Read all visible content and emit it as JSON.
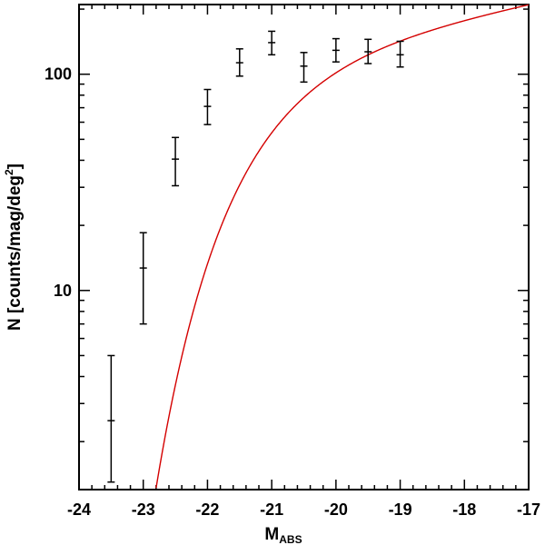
{
  "chart_data": {
    "type": "scatter",
    "title": "",
    "x_axis": {
      "label_main": "M",
      "label_sub": "ABS",
      "range": [
        -24,
        -17
      ],
      "scale": "linear",
      "major_ticks": [
        -24,
        -23,
        -22,
        -21,
        -20,
        -19,
        -18,
        -17
      ],
      "tick_labels": [
        "-24",
        "-23",
        "-22",
        "-21",
        "-20",
        "-19",
        "-18",
        "-17"
      ]
    },
    "y_axis": {
      "label_main": "N [counts/mag/deg",
      "label_sup": "2",
      "label_end": "]",
      "range": [
        1.2,
        210
      ],
      "scale": "log",
      "major_ticks": [
        10,
        100
      ],
      "tick_labels": [
        "10",
        "100"
      ]
    },
    "series": [
      {
        "kind": "points-with-errorbars",
        "color": "#000000",
        "points": [
          {
            "x": -23.5,
            "y": 2.5,
            "err_low": 1.3,
            "err_high": 5.0
          },
          {
            "x": -23.0,
            "y": 12.7,
            "err_low": 7.0,
            "err_high": 18.5
          },
          {
            "x": -22.5,
            "y": 40.5,
            "err_low": 30.5,
            "err_high": 51.0
          },
          {
            "x": -22.0,
            "y": 71.0,
            "err_low": 58.5,
            "err_high": 85.0
          },
          {
            "x": -21.5,
            "y": 113.0,
            "err_low": 98.0,
            "err_high": 131.0
          },
          {
            "x": -21.0,
            "y": 140.0,
            "err_low": 123.0,
            "err_high": 158.0
          },
          {
            "x": -20.5,
            "y": 109.0,
            "err_low": 92.0,
            "err_high": 126.0
          },
          {
            "x": -20.0,
            "y": 129.0,
            "err_low": 114.0,
            "err_high": 146.0
          },
          {
            "x": -19.5,
            "y": 127.0,
            "err_low": 112.0,
            "err_high": 145.0
          },
          {
            "x": -19.0,
            "y": 123.0,
            "err_low": 108.0,
            "err_high": 142.0
          }
        ]
      },
      {
        "kind": "fit-curve",
        "color": "#d40000",
        "model": "schechter",
        "phi_star": 130,
        "m_star": -21.2,
        "alpha": -1.15
      }
    ],
    "grid": false,
    "legend": "none"
  }
}
